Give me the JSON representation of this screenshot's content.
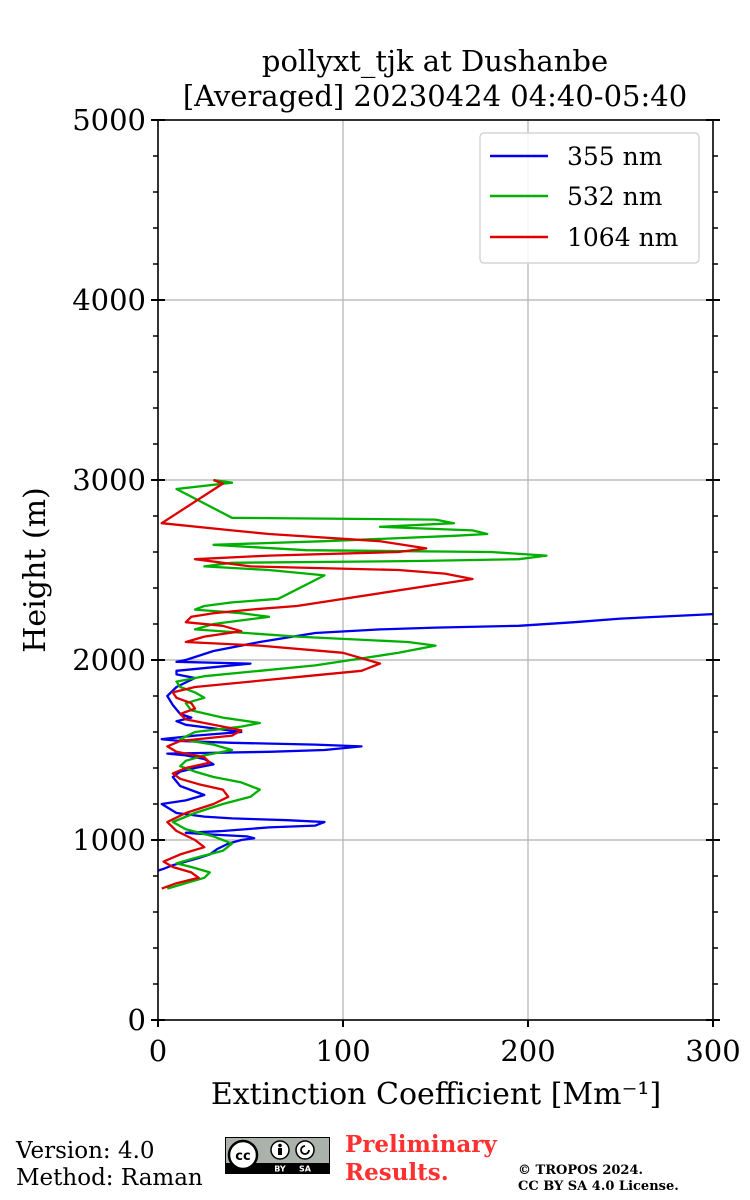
{
  "chart_data": {
    "type": "line",
    "orientation": "profile",
    "title": [
      "pollyxt_tjk at Dushanbe",
      "[Averaged] 20230424 04:40-05:40"
    ],
    "xlabel": "Extinction Coefficient [Mm⁻¹]",
    "ylabel": "Height (m)",
    "xlim": [
      0,
      300
    ],
    "ylim": [
      0,
      5000
    ],
    "xticks": [
      0,
      100,
      200,
      300
    ],
    "yticks": [
      0,
      1000,
      2000,
      3000,
      4000,
      5000
    ],
    "grid": true,
    "legend_position": "top-right",
    "series": [
      {
        "name": "355 nm",
        "color": "#0000ee",
        "x": [
          0,
          3,
          8,
          15,
          22,
          28,
          32,
          38,
          45,
          52,
          48,
          30,
          15,
          35,
          60,
          85,
          90,
          70,
          40,
          25,
          10,
          2,
          15,
          25,
          12,
          8,
          12,
          20,
          30,
          25,
          15,
          5,
          60,
          90,
          110,
          85,
          40,
          12,
          2,
          20,
          45,
          30,
          15,
          10,
          18,
          12,
          8,
          5,
          10,
          20,
          10,
          10,
          30,
          50,
          10,
          15,
          30,
          55,
          85,
          120,
          150,
          195,
          225,
          250,
          300
        ],
        "height": [
          830,
          840,
          860,
          880,
          900,
          920,
          950,
          980,
          1000,
          1010,
          1020,
          1030,
          1040,
          1050,
          1070,
          1080,
          1100,
          1110,
          1120,
          1130,
          1150,
          1200,
          1220,
          1250,
          1300,
          1350,
          1380,
          1400,
          1420,
          1450,
          1470,
          1480,
          1490,
          1500,
          1520,
          1530,
          1540,
          1550,
          1560,
          1580,
          1600,
          1620,
          1640,
          1660,
          1680,
          1700,
          1750,
          1800,
          1850,
          1900,
          1920,
          1940,
          1960,
          1980,
          1990,
          2000,
          2050,
          2100,
          2150,
          2170,
          2180,
          2190,
          2210,
          2230,
          2255
        ]
      },
      {
        "name": "532 nm",
        "color": "#00b000",
        "x": [
          5,
          15,
          25,
          28,
          18,
          10,
          20,
          35,
          40,
          30,
          15,
          8,
          20,
          35,
          50,
          55,
          45,
          30,
          20,
          12,
          15,
          25,
          40,
          30,
          12,
          20,
          45,
          55,
          35,
          18,
          15,
          25,
          20,
          12,
          10,
          25,
          55,
          85,
          130,
          150,
          135,
          75,
          20,
          30,
          60,
          45,
          20,
          25,
          40,
          65,
          90,
          60,
          25,
          40,
          140,
          195,
          210,
          180,
          80,
          30,
          90,
          160,
          178,
          170,
          120,
          160,
          150,
          40,
          10,
          40,
          30
        ],
        "height": [
          730,
          760,
          790,
          820,
          850,
          870,
          900,
          940,
          980,
          1020,
          1060,
          1100,
          1150,
          1200,
          1240,
          1280,
          1320,
          1350,
          1380,
          1410,
          1440,
          1470,
          1500,
          1530,
          1560,
          1600,
          1630,
          1650,
          1680,
          1720,
          1760,
          1790,
          1820,
          1850,
          1880,
          1910,
          1940,
          1970,
          2040,
          2080,
          2100,
          2130,
          2170,
          2200,
          2240,
          2260,
          2280,
          2300,
          2320,
          2340,
          2470,
          2500,
          2520,
          2540,
          2550,
          2560,
          2580,
          2600,
          2610,
          2640,
          2660,
          2690,
          2700,
          2720,
          2740,
          2760,
          2780,
          2790,
          2950,
          2985,
          3000
        ]
      },
      {
        "name": "1064 nm",
        "color": "#dd0000",
        "x": [
          2,
          10,
          22,
          18,
          8,
          3,
          12,
          25,
          20,
          10,
          5,
          15,
          30,
          38,
          35,
          22,
          12,
          8,
          15,
          28,
          25,
          10,
          5,
          12,
          40,
          45,
          30,
          15,
          12,
          20,
          18,
          10,
          8,
          20,
          50,
          80,
          110,
          120,
          100,
          55,
          15,
          25,
          45,
          35,
          15,
          18,
          30,
          50,
          75,
          170,
          155,
          130,
          50,
          20,
          60,
          130,
          145,
          120,
          60,
          40,
          2,
          35,
          30
        ],
        "height": [
          730,
          760,
          790,
          820,
          850,
          880,
          920,
          960,
          1000,
          1050,
          1100,
          1150,
          1200,
          1240,
          1280,
          1310,
          1340,
          1370,
          1400,
          1430,
          1460,
          1490,
          1520,
          1550,
          1580,
          1610,
          1640,
          1670,
          1700,
          1730,
          1760,
          1790,
          1820,
          1850,
          1880,
          1910,
          1940,
          1980,
          2040,
          2080,
          2100,
          2130,
          2160,
          2190,
          2210,
          2240,
          2260,
          2280,
          2300,
          2450,
          2480,
          2500,
          2520,
          2560,
          2580,
          2600,
          2620,
          2660,
          2700,
          2720,
          2760,
          2980,
          3000
        ]
      }
    ]
  },
  "footer": {
    "version_line": "Version: 4.0",
    "method_line": "Method: Raman",
    "cc_text": "cc",
    "cc_by": "BY",
    "cc_sa": "SA",
    "preliminary_line1": "Preliminary",
    "preliminary_line2": "Results.",
    "copyright_line1": "© TROPOS 2024.",
    "copyright_line2": "CC BY SA 4.0 License."
  }
}
